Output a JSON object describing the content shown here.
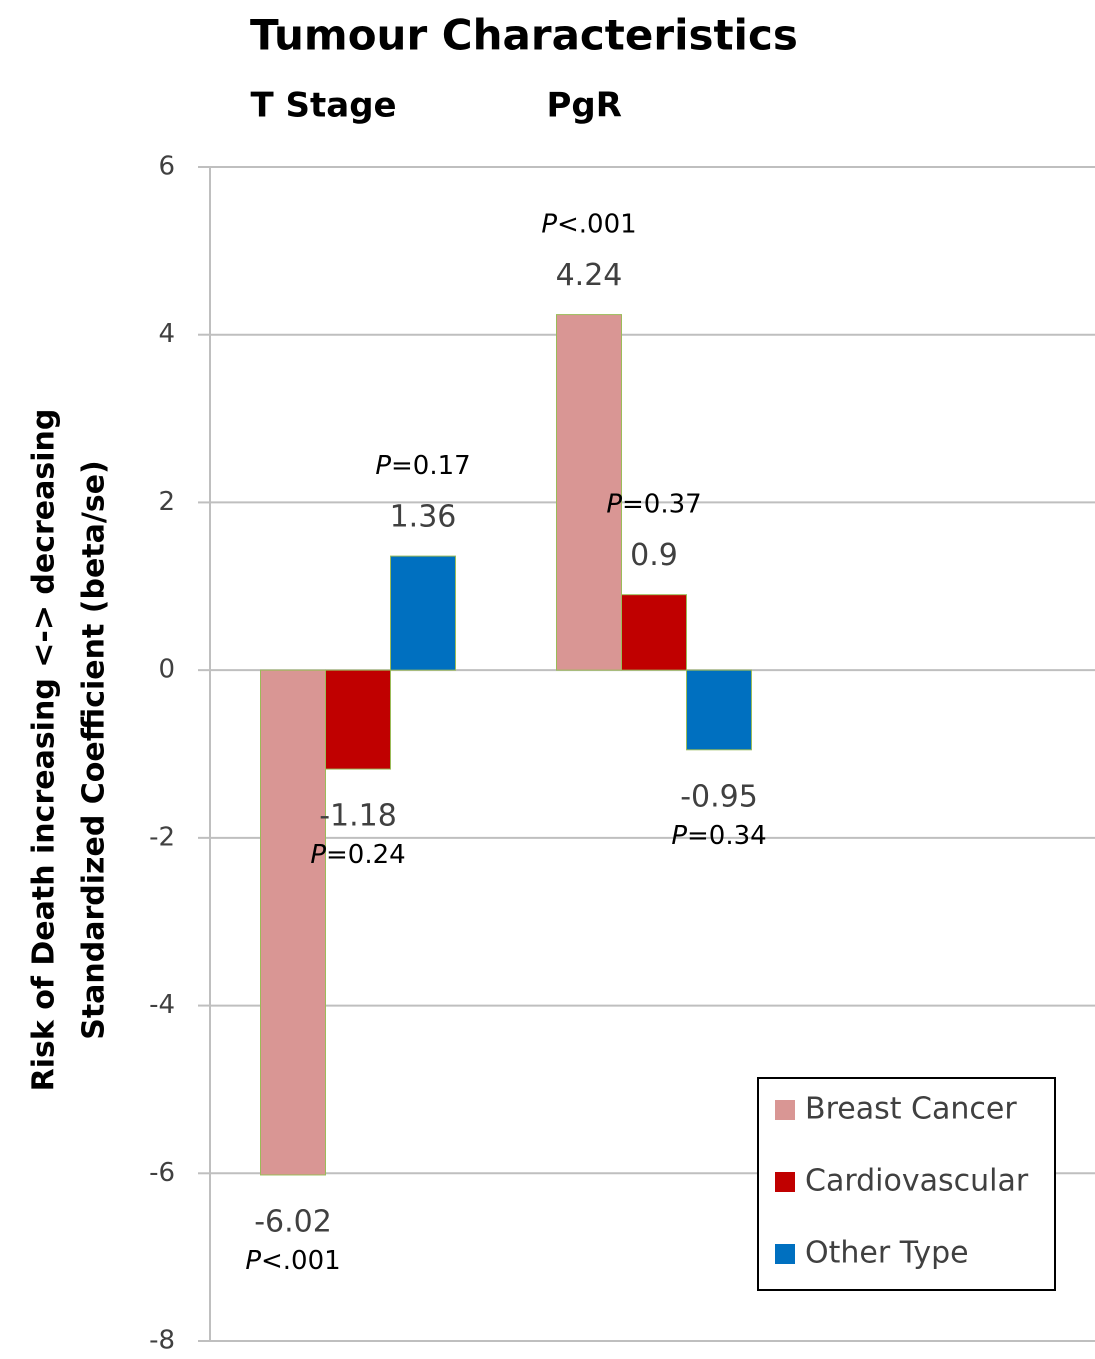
{
  "chart_data": {
    "type": "bar",
    "title": "Tumour Characteristics",
    "y_label": [
      "Risk of Death increasing <-> decreasing",
      "Standardized Coefficient (beta/se)"
    ],
    "categories": [
      "T Stage",
      "PgR"
    ],
    "series": [
      {
        "name": "Breast Cancer",
        "color": "#d99694",
        "values": [
          -6.02,
          4.24
        ],
        "p_values": [
          "P<.001",
          "P<.001"
        ]
      },
      {
        "name": "Cardiovascular",
        "color": "#c00000",
        "values": [
          -1.18,
          0.9
        ],
        "p_values": [
          "P=0.24",
          "P=0.37"
        ]
      },
      {
        "name": "Other Type",
        "color": "#0070c0",
        "values": [
          1.36,
          -0.95
        ],
        "p_values": [
          "P=0.17",
          "P=0.34"
        ]
      }
    ],
    "ylim": [
      -8,
      6
    ],
    "yticks": [
      -8,
      -6,
      -4,
      -2,
      0,
      2,
      4,
      6
    ],
    "grid": true,
    "legend": "lower right"
  }
}
